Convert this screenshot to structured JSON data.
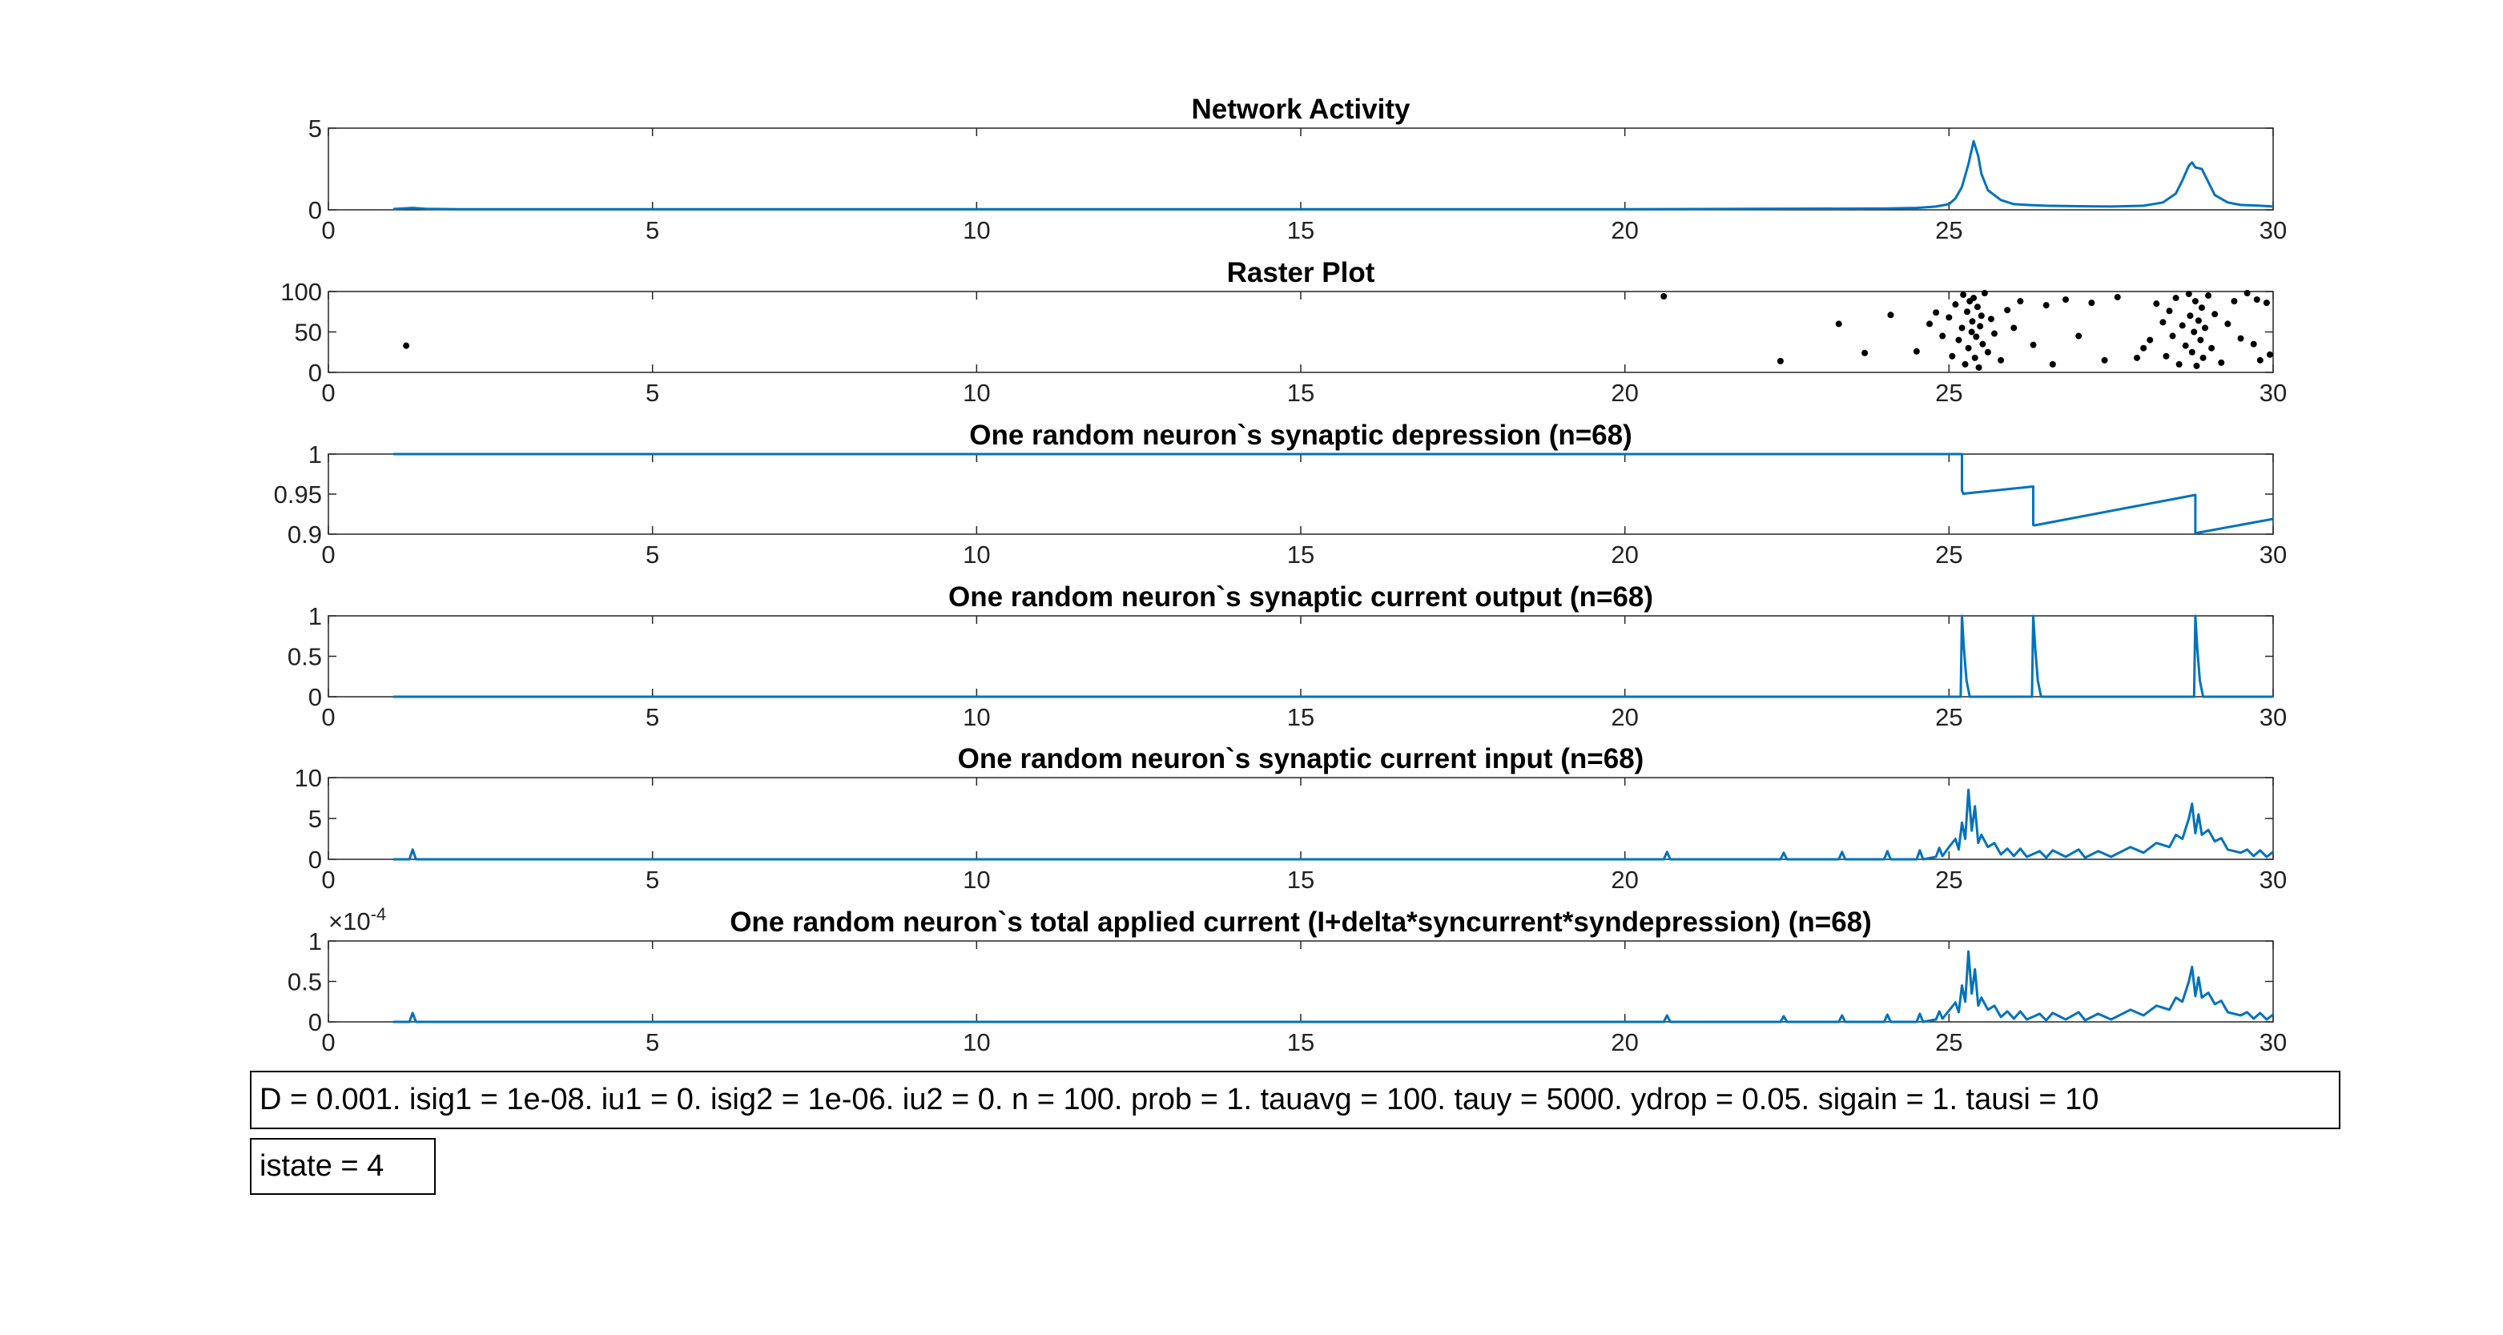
{
  "chart_data": [
    {
      "type": "line",
      "title": "Network Activity",
      "xlim": [
        0,
        30
      ],
      "ylim": [
        0,
        5
      ],
      "xticks": [
        0,
        5,
        10,
        15,
        20,
        25,
        30
      ],
      "yticks": [
        0,
        5
      ],
      "color": "#0072BD",
      "x": [
        1,
        1.3,
        1.5,
        2,
        20,
        22,
        24,
        24.5,
        24.8,
        25,
        25.1,
        25.2,
        25.3,
        25.38,
        25.45,
        25.5,
        25.6,
        25.8,
        26,
        26.2,
        26.5,
        27,
        27.5,
        28,
        28.3,
        28.5,
        28.6,
        28.7,
        28.75,
        28.8,
        28.9,
        29,
        29.1,
        29.3,
        29.5,
        29.8,
        30
      ],
      "y": [
        0.05,
        0.12,
        0.06,
        0.04,
        0.04,
        0.06,
        0.08,
        0.12,
        0.2,
        0.35,
        0.7,
        1.4,
        2.8,
        4.2,
        3.3,
        2.2,
        1.2,
        0.6,
        0.35,
        0.3,
        0.25,
        0.22,
        0.2,
        0.25,
        0.45,
        1.0,
        1.8,
        2.7,
        2.9,
        2.6,
        2.5,
        1.7,
        0.9,
        0.45,
        0.3,
        0.25,
        0.2
      ]
    },
    {
      "type": "scatter",
      "title": "Raster Plot",
      "xlim": [
        0,
        30
      ],
      "ylim": [
        0,
        100
      ],
      "xticks": [
        0,
        5,
        10,
        15,
        20,
        25,
        30
      ],
      "yticks": [
        0,
        50,
        100
      ],
      "color": "#000000",
      "points": [
        [
          1.2,
          33
        ],
        [
          20.6,
          94
        ],
        [
          22.4,
          14
        ],
        [
          23.3,
          60
        ],
        [
          23.7,
          24
        ],
        [
          24.1,
          71
        ],
        [
          24.5,
          26
        ],
        [
          24.7,
          60
        ],
        [
          24.8,
          74
        ],
        [
          24.9,
          45
        ],
        [
          25.0,
          68
        ],
        [
          25.05,
          20
        ],
        [
          25.1,
          84
        ],
        [
          25.15,
          40
        ],
        [
          25.2,
          55
        ],
        [
          25.22,
          96
        ],
        [
          25.25,
          10
        ],
        [
          25.28,
          75
        ],
        [
          25.3,
          30
        ],
        [
          25.32,
          88
        ],
        [
          25.35,
          50
        ],
        [
          25.36,
          63
        ],
        [
          25.38,
          92
        ],
        [
          25.4,
          18
        ],
        [
          25.42,
          44
        ],
        [
          25.44,
          81
        ],
        [
          25.46,
          6
        ],
        [
          25.48,
          57
        ],
        [
          25.5,
          70
        ],
        [
          25.52,
          35
        ],
        [
          25.55,
          98
        ],
        [
          25.6,
          25
        ],
        [
          25.65,
          66
        ],
        [
          25.7,
          48
        ],
        [
          25.8,
          15
        ],
        [
          25.9,
          77
        ],
        [
          26.0,
          55
        ],
        [
          26.1,
          88
        ],
        [
          26.3,
          34
        ],
        [
          26.5,
          83
        ],
        [
          26.6,
          10
        ],
        [
          26.8,
          90
        ],
        [
          27.0,
          45
        ],
        [
          27.2,
          86
        ],
        [
          27.4,
          15
        ],
        [
          27.6,
          93
        ],
        [
          27.9,
          18
        ],
        [
          28.0,
          30
        ],
        [
          28.1,
          40
        ],
        [
          28.2,
          85
        ],
        [
          28.3,
          62
        ],
        [
          28.35,
          20
        ],
        [
          28.4,
          76
        ],
        [
          28.45,
          45
        ],
        [
          28.5,
          92
        ],
        [
          28.55,
          10
        ],
        [
          28.6,
          58
        ],
        [
          28.65,
          33
        ],
        [
          28.7,
          97
        ],
        [
          28.72,
          70
        ],
        [
          28.75,
          25
        ],
        [
          28.78,
          50
        ],
        [
          28.8,
          88
        ],
        [
          28.82,
          8
        ],
        [
          28.85,
          64
        ],
        [
          28.88,
          40
        ],
        [
          28.9,
          80
        ],
        [
          28.92,
          18
        ],
        [
          28.95,
          55
        ],
        [
          29.0,
          95
        ],
        [
          29.05,
          30
        ],
        [
          29.1,
          72
        ],
        [
          29.2,
          12
        ],
        [
          29.3,
          60
        ],
        [
          29.4,
          88
        ],
        [
          29.5,
          42
        ],
        [
          29.6,
          98
        ],
        [
          29.7,
          35
        ],
        [
          29.75,
          90
        ],
        [
          29.8,
          15
        ],
        [
          29.9,
          86
        ],
        [
          29.95,
          22
        ]
      ]
    },
    {
      "type": "line",
      "title": "One random neuron`s synaptic depression (n=68)",
      "xlim": [
        0,
        30
      ],
      "ylim": [
        0.9,
        1
      ],
      "xticks": [
        0,
        5,
        10,
        15,
        20,
        25,
        30
      ],
      "yticks": [
        0.9,
        0.95,
        1
      ],
      "color": "#0072BD",
      "x": [
        1,
        25.2,
        25.2,
        25.22,
        26.3,
        26.3,
        26.32,
        28.8,
        28.8,
        28.82,
        30
      ],
      "y": [
        1,
        1,
        0.9545,
        0.9505,
        0.9595,
        0.9115,
        0.911,
        0.949,
        0.902,
        0.9015,
        0.919
      ]
    },
    {
      "type": "line",
      "title": "One random neuron`s synaptic current output (n=68)",
      "xlim": [
        0,
        30
      ],
      "ylim": [
        0,
        1
      ],
      "xticks": [
        0,
        5,
        10,
        15,
        20,
        25,
        30
      ],
      "yticks": [
        0,
        0.5,
        1
      ],
      "color": "#0072BD",
      "x": [
        1,
        25.18,
        25.2,
        25.23,
        25.27,
        25.32,
        26.28,
        26.3,
        26.33,
        26.37,
        26.42,
        28.78,
        28.8,
        28.83,
        28.87,
        28.92,
        30
      ],
      "y": [
        0,
        0,
        1,
        0.6,
        0.2,
        0,
        0,
        1,
        0.6,
        0.2,
        0,
        0,
        1,
        0.6,
        0.2,
        0,
        0
      ]
    },
    {
      "type": "line",
      "title": "One random neuron`s synaptic current input (n=68)",
      "xlim": [
        0,
        30
      ],
      "ylim": [
        0,
        10
      ],
      "xticks": [
        0,
        5,
        10,
        15,
        20,
        25,
        30
      ],
      "yticks": [
        0,
        5,
        10
      ],
      "color": "#0072BD",
      "x": [
        1,
        1.25,
        1.3,
        1.35,
        20.6,
        20.65,
        20.7,
        22.4,
        22.45,
        22.5,
        23.3,
        23.35,
        23.4,
        24.0,
        24.05,
        24.1,
        24.5,
        24.55,
        24.6,
        24.8,
        24.85,
        24.9,
        25.0,
        25.1,
        25.15,
        25.2,
        25.25,
        25.3,
        25.35,
        25.4,
        25.45,
        25.5,
        25.6,
        25.7,
        25.8,
        25.9,
        26.0,
        26.1,
        26.2,
        26.4,
        26.5,
        26.6,
        26.8,
        27.0,
        27.1,
        27.3,
        27.5,
        27.8,
        28.0,
        28.2,
        28.4,
        28.5,
        28.6,
        28.7,
        28.75,
        28.8,
        28.85,
        28.9,
        29.0,
        29.1,
        29.2,
        29.3,
        29.5,
        29.6,
        29.7,
        29.8,
        29.9,
        30
      ],
      "y": [
        0,
        0,
        1.2,
        0,
        0,
        0.9,
        0,
        0,
        0.8,
        0,
        0,
        0.9,
        0,
        0,
        1.0,
        0,
        0,
        1.1,
        0,
        0.3,
        1.4,
        0.4,
        1.5,
        2.5,
        1.2,
        4.5,
        2.5,
        8.5,
        3.5,
        6.5,
        2.0,
        3.0,
        1.5,
        2.0,
        0.6,
        1.3,
        0.4,
        1.3,
        0.3,
        1.0,
        0.2,
        1.1,
        0.3,
        1.2,
        0.2,
        1.0,
        0.3,
        1.5,
        0.8,
        2.0,
        1.5,
        3.0,
        2.5,
        5.0,
        6.8,
        3.2,
        5.5,
        3.0,
        3.6,
        2.2,
        2.6,
        1.2,
        0.8,
        1.2,
        0.4,
        1.1,
        0.3,
        0.9
      ]
    },
    {
      "type": "line",
      "title": "One random neuron`s total applied current (I+delta*syncurrent*syndepression) (n=68)",
      "xlim": [
        0,
        30
      ],
      "ylim": [
        0,
        1
      ],
      "exponent_label": "×10^-4",
      "xticks": [
        0,
        5,
        10,
        15,
        20,
        25,
        30
      ],
      "yticks": [
        0,
        0.5,
        1
      ],
      "color": "#0072BD",
      "x": [
        1,
        1.25,
        1.3,
        1.35,
        20.6,
        20.65,
        20.7,
        22.4,
        22.45,
        22.5,
        23.3,
        23.35,
        23.4,
        24.0,
        24.05,
        24.1,
        24.5,
        24.55,
        24.6,
        24.8,
        24.85,
        24.9,
        25.0,
        25.1,
        25.15,
        25.2,
        25.25,
        25.3,
        25.35,
        25.4,
        25.45,
        25.5,
        25.6,
        25.7,
        25.8,
        25.9,
        26.0,
        26.1,
        26.2,
        26.4,
        26.5,
        26.6,
        26.8,
        27.0,
        27.1,
        27.3,
        27.5,
        27.8,
        28.0,
        28.2,
        28.4,
        28.5,
        28.6,
        28.7,
        28.75,
        28.8,
        28.85,
        28.9,
        29.0,
        29.1,
        29.2,
        29.3,
        29.5,
        29.6,
        29.7,
        29.8,
        29.9,
        30
      ],
      "y": [
        0,
        0,
        0.11,
        0,
        0,
        0.08,
        0,
        0,
        0.07,
        0,
        0,
        0.08,
        0,
        0,
        0.09,
        0,
        0,
        0.1,
        0,
        0.03,
        0.13,
        0.04,
        0.14,
        0.24,
        0.12,
        0.45,
        0.25,
        0.87,
        0.35,
        0.65,
        0.2,
        0.3,
        0.15,
        0.2,
        0.06,
        0.13,
        0.04,
        0.13,
        0.03,
        0.1,
        0.02,
        0.11,
        0.03,
        0.12,
        0.02,
        0.1,
        0.03,
        0.15,
        0.08,
        0.2,
        0.15,
        0.3,
        0.25,
        0.5,
        0.68,
        0.32,
        0.55,
        0.3,
        0.36,
        0.22,
        0.26,
        0.12,
        0.08,
        0.12,
        0.04,
        0.11,
        0.03,
        0.09
      ]
    }
  ],
  "param_box": {
    "text": "D = 0.001. isig1 = 1e-08. iu1 = 0. isig2 = 1e-06. iu2 = 0. n = 100. prob = 1. tauavg = 100. tauy = 5000. ydrop = 0.05. sigain = 1. tausi = 10"
  },
  "state_box": {
    "text": "istate = 4"
  }
}
